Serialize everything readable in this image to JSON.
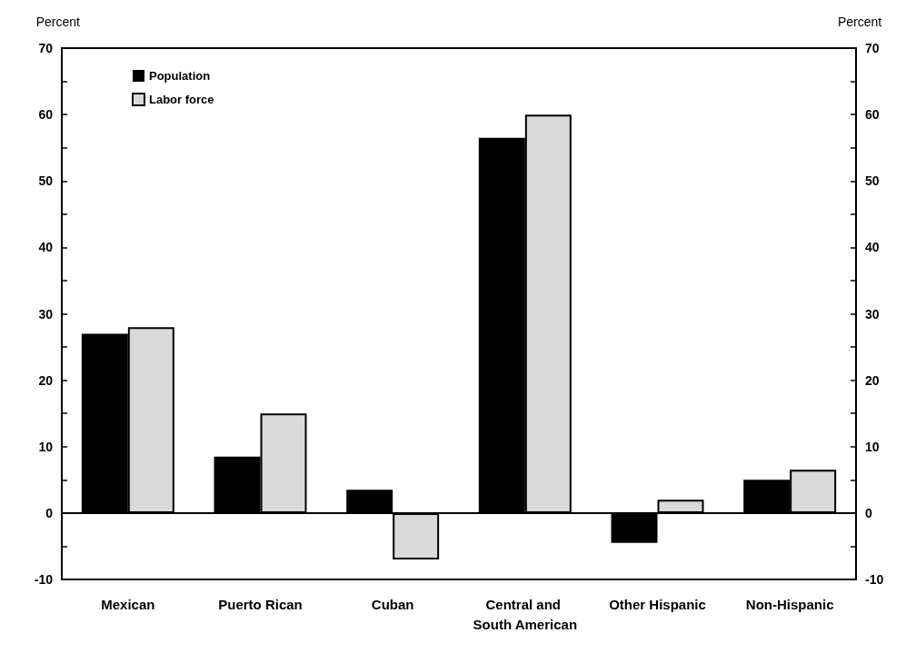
{
  "chart_data": {
    "type": "bar",
    "ylabel": "Percent",
    "y2label": "Percent",
    "categories": [
      "Mexican",
      "Puerto Rican",
      "Cuban",
      "Central and South American",
      "Other Hispanic",
      "Non-Hispanic"
    ],
    "series": [
      {
        "name": "Population",
        "color": "#000000",
        "values": [
          27,
          8.5,
          3.5,
          56.5,
          -4.5,
          5
        ]
      },
      {
        "name": "Labor force",
        "color": "#d9d9d9",
        "values": [
          28,
          15,
          -7,
          60,
          2,
          6.5
        ]
      }
    ],
    "ylim": [
      -10,
      70
    ],
    "yticks": [
      -10,
      {
        "value": -5,
        "label": null
      },
      0,
      {
        "value": 5,
        "label": null
      },
      10,
      {
        "value": 15,
        "label": null
      },
      20,
      {
        "value": 25,
        "label": null
      },
      30,
      {
        "value": 35,
        "label": null
      },
      40,
      {
        "value": 45,
        "label": null
      },
      50,
      {
        "value": 55,
        "label": null
      },
      60,
      {
        "value": 65,
        "label": null
      },
      70
    ],
    "y2lim": [
      -10,
      70
    ],
    "y2ticks": [
      -10,
      {
        "value": -5,
        "label": null
      },
      0,
      {
        "value": 5,
        "label": null
      },
      10,
      {
        "value": 15,
        "label": null
      },
      20,
      {
        "value": 25,
        "label": null
      },
      30,
      {
        "value": 35,
        "label": null
      },
      40,
      {
        "value": 45,
        "label": null
      },
      50,
      {
        "value": 55,
        "label": null
      },
      60,
      {
        "value": 65,
        "label": null
      },
      70
    ],
    "legend": "top left"
  }
}
